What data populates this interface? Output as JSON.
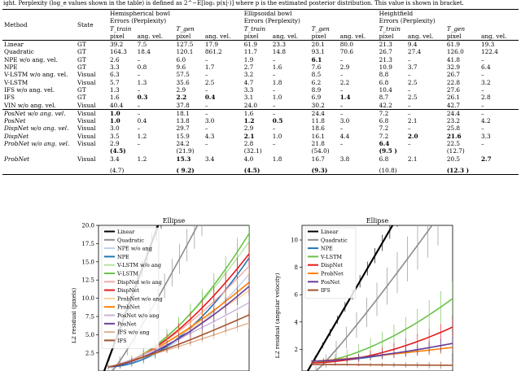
{
  "caption": "ight. Perplexity (log_e values shown in the table) is defined as 2^−E[log₂ p(x|·)] where p is the estimated posterior distribution. This value is shown in bracket.",
  "table": {
    "headers": {
      "method": "Method",
      "state": "State",
      "groups": [
        {
          "name": "Hemispherical bowl",
          "sub": "Errors (Perplexity)"
        },
        {
          "name": "Ellipsoidal bowl",
          "sub": "Errors (Perplexity)"
        },
        {
          "name": "Heightfield",
          "sub": "Errors (Perplexity)"
        }
      ],
      "ttrain": "T_train",
      "tgen": "T_gen",
      "pixel": "pixel",
      "angvel": "ang. vel."
    },
    "rows": [
      {
        "m": "Linear",
        "it": false,
        "s": "GT",
        "v": [
          "39.2",
          "7.5",
          "127.5",
          "17.9",
          "61.9",
          "23.3",
          "20.1",
          "80.0",
          "21.3",
          "9.4",
          "61.9",
          "19.3"
        ],
        "bold": [],
        "sep": "top"
      },
      {
        "m": "Quadratic",
        "it": false,
        "s": "GT",
        "v": [
          "164.3",
          "18.4",
          "120.1",
          "861.2",
          "11.7",
          "14.8",
          "93.1",
          "70.6",
          "26.7",
          "27.4",
          "126.0",
          "122.4"
        ],
        "bold": []
      },
      {
        "m": "NPE w/o ang. vel.",
        "it": false,
        "s": "GT",
        "v": [
          "2.6",
          "–",
          "6.0",
          "–",
          "1.9",
          "–",
          "6.1",
          "–",
          "21.3",
          "–",
          "41.8",
          "–"
        ],
        "bold": [
          6
        ]
      },
      {
        "m": "NPE",
        "it": false,
        "s": "GT",
        "v": [
          "3.3",
          "0.8",
          "9.6",
          "1.7",
          "2.7",
          "1.6",
          "7.6",
          "2.9",
          "10.9",
          "3.7",
          "32.9",
          "6.4"
        ],
        "bold": []
      },
      {
        "m": "V-LSTM w/o ang. vel.",
        "it": false,
        "s": "Visual",
        "v": [
          "6.3",
          "–",
          "57.5",
          "–",
          "3.2",
          "–",
          "8.5",
          "–",
          "8.8",
          "–",
          "26.7",
          "–"
        ],
        "bold": []
      },
      {
        "m": "V-LSTM",
        "it": false,
        "s": "Visual",
        "v": [
          "5.7",
          "1.3",
          "35.6",
          "2.5",
          "4.7",
          "1.8",
          "6.2",
          "2.2",
          "6.8",
          "2.5",
          "22.8",
          "3.2"
        ],
        "bold": []
      },
      {
        "m": "IFS w/o ang. vel.",
        "it": false,
        "s": "GT",
        "v": [
          "1.3",
          "–",
          "2.9",
          "–",
          "3.3",
          "–",
          "8.9",
          "–",
          "10.4",
          "–",
          "27.6",
          "–"
        ],
        "bold": []
      },
      {
        "m": "IFS",
        "it": false,
        "s": "GT",
        "v": [
          "1.6",
          "0.3",
          "2.2",
          "0.4",
          "3.1",
          "1.0",
          "6.9",
          "1.4",
          "8.7",
          "2.5",
          "26.1",
          "2.8"
        ],
        "bold": [
          1,
          2,
          3,
          7
        ]
      },
      {
        "m": "VIN w/o ang. vel.",
        "it": false,
        "s": "Visual",
        "v": [
          "40.4",
          "–",
          "37.8",
          "–",
          "24.0",
          "–",
          "30.2",
          "–",
          "42.2",
          "–",
          "42.7",
          "–"
        ],
        "bold": [],
        "sep": "bottom"
      },
      {
        "m": "PosNet w/o ang. vel.",
        "it": true,
        "s": "Visual",
        "v": [
          "1.0",
          "–",
          "18.1",
          "–",
          "1.6",
          "–",
          "24.4",
          "–",
          "7.2",
          "–",
          "24.4",
          "–"
        ],
        "bold": [
          0
        ]
      },
      {
        "m": "PosNet",
        "it": true,
        "s": "Visual",
        "v": [
          "1.0",
          "0.4",
          "13.8",
          "3.0",
          "1.2",
          "0.5",
          "11.8",
          "3.0",
          "6.8",
          "2.1",
          "23.2",
          "4.2"
        ],
        "bold": [
          0,
          4,
          5
        ]
      },
      {
        "m": "DispNet w/o ang. vel.",
        "it": true,
        "s": "Visual",
        "v": [
          "3.0",
          "–",
          "29.7",
          "–",
          "2.9",
          "–",
          "18.6",
          "–",
          "7.2",
          "–",
          "25.8",
          "–"
        ],
        "bold": []
      },
      {
        "m": "DispNet",
        "it": true,
        "s": "Visual",
        "v": [
          "3.5",
          "1.2",
          "15.9",
          "4.3",
          "2.1",
          "1.0",
          "16.1",
          "4.4",
          "7.2",
          "2.0",
          "21.6",
          "3.3"
        ],
        "bold": [
          4,
          9,
          10
        ]
      },
      {
        "m": "ProbNet w/o ang. vel.",
        "it": true,
        "s": "Visual",
        "v": [
          "2.9",
          "–",
          "24.2",
          "–",
          "2.8",
          "–",
          "21.8",
          "–",
          "6.4",
          "–",
          "22.5",
          "–"
        ],
        "bold": [
          8
        ]
      },
      {
        "m": "",
        "it": false,
        "s": "",
        "v": [
          "(4.5)",
          "",
          "(21.9)",
          "",
          "(32.1)",
          "",
          "(54.0)",
          "",
          "(9.5 )",
          "",
          "(12.7)",
          ""
        ],
        "bold": [
          0,
          8
        ]
      },
      {
        "m": "ProbNet",
        "it": true,
        "s": "Visual",
        "v": [
          "3.4",
          "1.2",
          "15.3",
          "3.4",
          "4.0",
          "1.8",
          "16.7",
          "3.8",
          "6.8",
          "2.1",
          "20.5",
          "2.7"
        ],
        "bold": [
          2,
          11
        ],
        "gap": true
      },
      {
        "m": "",
        "it": false,
        "s": "",
        "v": [
          "(4.7)",
          "",
          "( 9.2)",
          "",
          "(4.5)",
          "",
          "(9.3)",
          "",
          "(10.8)",
          "",
          "(12.3 )",
          ""
        ],
        "bold": [
          2,
          4,
          6,
          10
        ],
        "sep": "bottom"
      }
    ]
  },
  "figures": [
    {
      "title": "Ellipse",
      "ylabel": "L2 residual (pixels)",
      "yticks": [
        "20.0",
        "17.5",
        "15.0",
        "12.5",
        "10.0",
        "7.5",
        "5.0",
        "2.5"
      ],
      "legend": [
        {
          "label": "Linear",
          "color": "#000000",
          "dash": false
        },
        {
          "label": "Quadratic",
          "color": "#8c8c8c",
          "dash": false
        },
        {
          "label": "NPE w/o ang",
          "color": "#bcd2ee",
          "dash": false
        },
        {
          "label": "NPE",
          "color": "#1f77b4",
          "dash": false
        },
        {
          "label": "V-LSTM w/o ang",
          "color": "#b6e3a0",
          "dash": false
        },
        {
          "label": "V-LSTM",
          "color": "#6cc24a",
          "dash": false
        },
        {
          "label": "DispNet w/o ang",
          "color": "#f4a8a8",
          "dash": false
        },
        {
          "label": "DispNet",
          "color": "#e31a1c",
          "dash": false
        },
        {
          "label": "ProbNet w/o ang",
          "color": "#fdd39a",
          "dash": false
        },
        {
          "label": "ProbNet",
          "color": "#ff7f00",
          "dash": false
        },
        {
          "label": "PosNet w/o ang",
          "color": "#cab2d6",
          "dash": false
        },
        {
          "label": "PosNet",
          "color": "#6a3d9a",
          "dash": false
        },
        {
          "label": "IFS w/o ang",
          "color": "#e0b090",
          "dash": false
        },
        {
          "label": "IFS",
          "color": "#a0522d",
          "dash": false
        }
      ]
    },
    {
      "title": "Ellipse",
      "ylabel": "L2 residual (angular velocity)",
      "yticks": [
        "10",
        "8",
        "6",
        "4",
        "2"
      ],
      "legend": [
        {
          "label": "Linear",
          "color": "#000000",
          "dash": false
        },
        {
          "label": "Quadratic",
          "color": "#8c8c8c",
          "dash": false
        },
        {
          "label": "NPE",
          "color": "#1f77b4",
          "dash": false
        },
        {
          "label": "V-LSTM",
          "color": "#6cc24a",
          "dash": false
        },
        {
          "label": "DispNet",
          "color": "#e31a1c",
          "dash": false
        },
        {
          "label": "ProbNet",
          "color": "#ff7f00",
          "dash": false
        },
        {
          "label": "PosNet",
          "color": "#6a3d9a",
          "dash": false
        },
        {
          "label": "IFS",
          "color": "#a0522d",
          "dash": false
        }
      ]
    }
  ]
}
